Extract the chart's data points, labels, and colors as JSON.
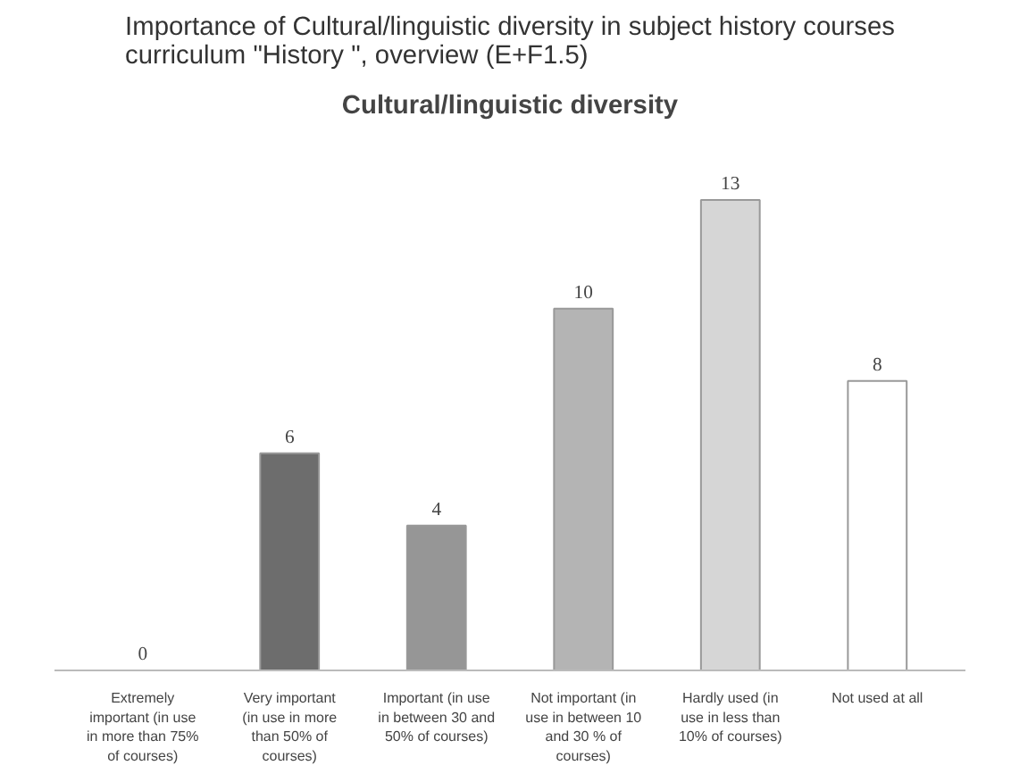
{
  "chart_data": {
    "type": "bar",
    "title": "Importance of Cultural/linguistic diversity in subject history courses curriculum \"History \", overview (E+F1.5)",
    "subtitle": "Cultural/linguistic diversity",
    "categories": [
      "Extremely important (in use in more than 75% of courses)",
      "Very important (in use in more than 50% of courses)",
      "Important (in use in between 30 and 50% of courses)",
      "Not important (in use in between 10 and 30 % of courses)",
      "Hardly used (in use in less than 10% of courses)",
      "Not used at all"
    ],
    "values": [
      0,
      6,
      4,
      10,
      13,
      8
    ],
    "colors": [
      "#6d6d6d",
      "#6d6d6d",
      "#969696",
      "#b4b4b4",
      "#d6d6d6",
      "#ffffff"
    ],
    "data_labels": true
  }
}
